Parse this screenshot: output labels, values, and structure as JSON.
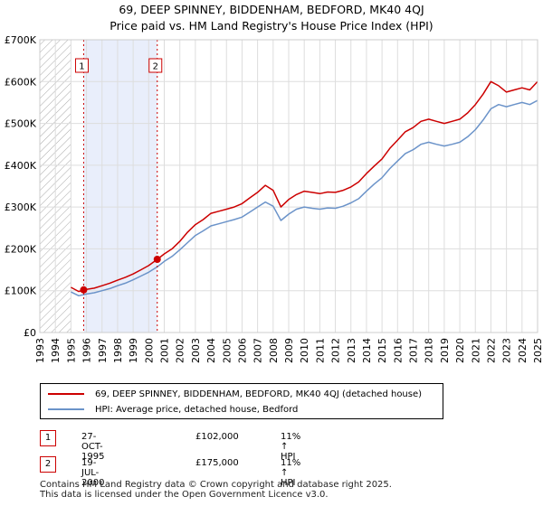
{
  "title_line1": "69, DEEP SPINNEY, BIDDENHAM, BEDFORD, MK40 4QJ",
  "title_line2": "Price paid vs. HM Land Registry's House Price Index (HPI)",
  "colors": {
    "property": "#cc0000",
    "hpi": "#6b93c9",
    "highlight": "#e9eefb",
    "hatch": "#aaaaaa"
  },
  "chart_data": {
    "type": "line",
    "xlim": [
      1993,
      2025
    ],
    "ylim": [
      0,
      700000
    ],
    "y_ticks": [
      0,
      100000,
      200000,
      300000,
      400000,
      500000,
      600000,
      700000
    ],
    "y_tick_labels": [
      "£0",
      "£100K",
      "£200K",
      "£300K",
      "£400K",
      "£500K",
      "£600K",
      "£700K"
    ],
    "x_ticks": [
      1993,
      1994,
      1995,
      1996,
      1997,
      1998,
      1999,
      2000,
      2001,
      2002,
      2003,
      2004,
      2005,
      2006,
      2007,
      2008,
      2009,
      2010,
      2011,
      2012,
      2013,
      2014,
      2015,
      2016,
      2017,
      2018,
      2019,
      2020,
      2021,
      2022,
      2023,
      2024,
      2025
    ],
    "x_tick_labels": [
      "1993",
      "1994",
      "1995",
      "1996",
      "1997",
      "1998",
      "1999",
      "2000",
      "2001",
      "2002",
      "2003",
      "2004",
      "2005",
      "2006",
      "2007",
      "2008",
      "2009",
      "2010",
      "2011",
      "2012",
      "2013",
      "2014",
      "2015",
      "2016",
      "2017",
      "2018",
      "2019",
      "2020",
      "2021",
      "2022",
      "2023",
      "2024",
      "2025"
    ],
    "hatched_before": 1995.0,
    "highlight_range": [
      1995.82,
      2000.55
    ],
    "series": [
      {
        "name": "69, DEEP SPINNEY, BIDDENHAM, BEDFORD, MK40 4QJ (detached house)",
        "x": [
          1995.0,
          1995.5,
          1995.82,
          1996.5,
          1997,
          1997.5,
          1998,
          1998.5,
          1999,
          1999.5,
          2000,
          2000.55,
          2001,
          2001.5,
          2002,
          2002.5,
          2003,
          2003.5,
          2004,
          2004.5,
          2005,
          2005.5,
          2006,
          2006.5,
          2007,
          2007.5,
          2008,
          2008.5,
          2009,
          2009.5,
          2010,
          2010.5,
          2011,
          2011.5,
          2012,
          2012.5,
          2013,
          2013.5,
          2014,
          2014.5,
          2015,
          2015.5,
          2016,
          2016.5,
          2017,
          2017.5,
          2018,
          2018.5,
          2019,
          2019.5,
          2020,
          2020.5,
          2021,
          2021.5,
          2022,
          2022.5,
          2023,
          2023.5,
          2024,
          2024.5,
          2025
        ],
        "values": [
          108000,
          98000,
          102000,
          106000,
          112000,
          118000,
          125000,
          132000,
          140000,
          150000,
          160000,
          175000,
          188000,
          200000,
          218000,
          240000,
          258000,
          270000,
          285000,
          290000,
          295000,
          300000,
          308000,
          322000,
          335000,
          352000,
          340000,
          300000,
          318000,
          330000,
          338000,
          335000,
          332000,
          336000,
          335000,
          340000,
          348000,
          360000,
          380000,
          398000,
          415000,
          440000,
          460000,
          480000,
          490000,
          505000,
          510000,
          505000,
          500000,
          505000,
          510000,
          525000,
          545000,
          570000,
          600000,
          590000,
          575000,
          580000,
          585000,
          580000,
          600000
        ]
      },
      {
        "name": "HPI: Average price, detached house, Bedford",
        "x": [
          1995.0,
          1995.5,
          1996,
          1996.5,
          1997,
          1997.5,
          1998,
          1998.5,
          1999,
          1999.5,
          2000,
          2000.55,
          2001,
          2001.5,
          2002,
          2002.5,
          2003,
          2003.5,
          2004,
          2004.5,
          2005,
          2005.5,
          2006,
          2006.5,
          2007,
          2007.5,
          2008,
          2008.5,
          2009,
          2009.5,
          2010,
          2010.5,
          2011,
          2011.5,
          2012,
          2012.5,
          2013,
          2013.5,
          2014,
          2014.5,
          2015,
          2015.5,
          2016,
          2016.5,
          2017,
          2017.5,
          2018,
          2018.5,
          2019,
          2019.5,
          2020,
          2020.5,
          2021,
          2021.5,
          2022,
          2022.5,
          2023,
          2023.5,
          2024,
          2024.5,
          2025
        ],
        "values": [
          97000,
          88000,
          92000,
          95000,
          100000,
          105000,
          112000,
          118000,
          126000,
          135000,
          144000,
          157000,
          170000,
          182000,
          198000,
          215000,
          232000,
          243000,
          255000,
          260000,
          265000,
          270000,
          276000,
          288000,
          300000,
          312000,
          302000,
          268000,
          283000,
          295000,
          300000,
          297000,
          295000,
          298000,
          297000,
          302000,
          310000,
          320000,
          338000,
          355000,
          370000,
          392000,
          410000,
          428000,
          437000,
          450000,
          455000,
          450000,
          446000,
          450000,
          455000,
          468000,
          485000,
          508000,
          535000,
          545000,
          540000,
          545000,
          550000,
          545000,
          555000
        ]
      }
    ],
    "sales": [
      {
        "label": "1",
        "x": 1995.82,
        "y": 102000
      },
      {
        "label": "2",
        "x": 2000.55,
        "y": 175000
      }
    ]
  },
  "legend": {
    "property_label": "69, DEEP SPINNEY, BIDDENHAM, BEDFORD, MK40 4QJ (detached house)",
    "hpi_label": "HPI: Average price, detached house, Bedford"
  },
  "transactions": [
    {
      "num": "1",
      "date": "27-OCT-1995",
      "price": "£102,000",
      "hpi": "11% ↑ HPI"
    },
    {
      "num": "2",
      "date": "19-JUL-2000",
      "price": "£175,000",
      "hpi": "11% ↑ HPI"
    }
  ],
  "footer": {
    "line1": "Contains HM Land Registry data © Crown copyright and database right 2025.",
    "line2": "This data is licensed under the Open Government Licence v3.0."
  }
}
